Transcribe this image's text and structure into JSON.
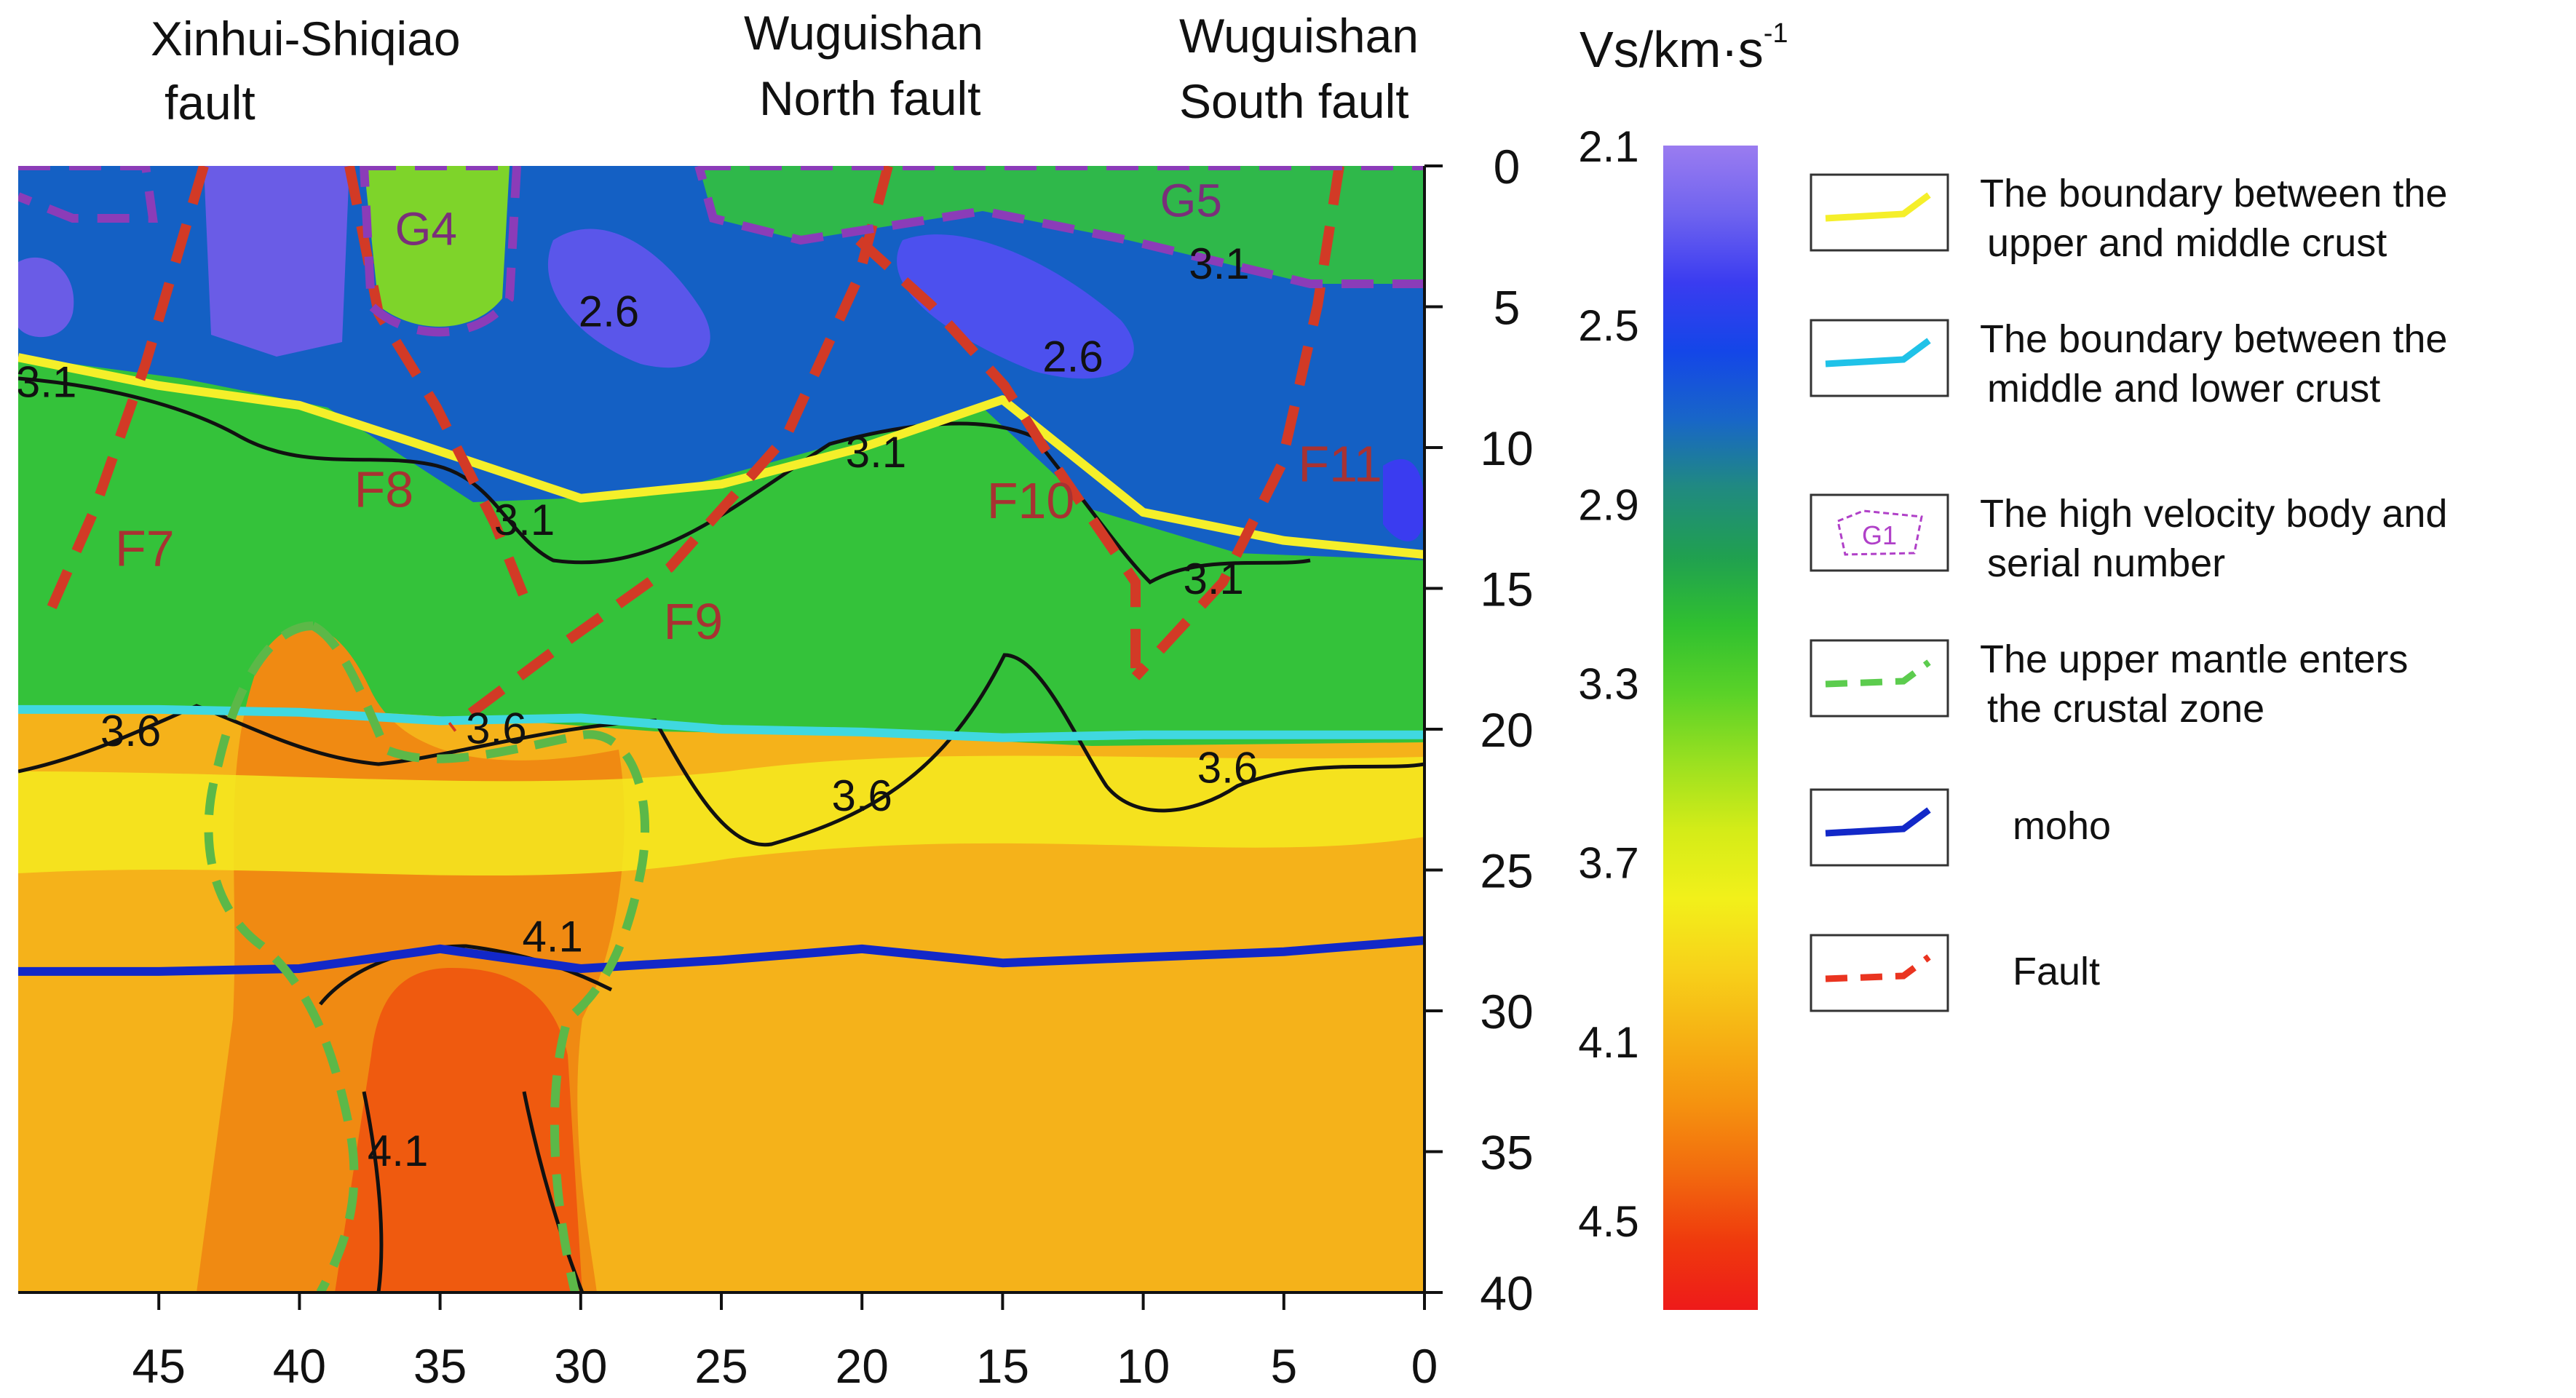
{
  "faults_top": [
    {
      "line1": "Xinhui-Shiqiao",
      "line2": "fault"
    },
    {
      "line1": "Wuguishan",
      "line2": "North fault"
    },
    {
      "line1": "Wuguishan",
      "line2": "South fault"
    }
  ],
  "colorbar": {
    "unit_main": "Vs/km·s",
    "unit_exp": "-1",
    "ticks": [
      "2.1",
      "2.5",
      "2.9",
      "3.3",
      "3.7",
      "4.1",
      "4.5"
    ],
    "stops": [
      "#9a7cf0",
      "#6f63ef",
      "#3a3cf0",
      "#1446e8",
      "#1866c8",
      "#208a80",
      "#20a050",
      "#30c030",
      "#5ad228",
      "#9ae020",
      "#d4ec18",
      "#f2f01a",
      "#f7d21a",
      "#f6b214",
      "#f5920f",
      "#f26a0e",
      "#ef3a0d",
      "#ee1a1a"
    ]
  },
  "legend": [
    {
      "text1": "The boundary between the",
      "text2": "upper and middle crust",
      "kind": "line",
      "color": "#f5ef2a"
    },
    {
      "text1": "The boundary between the",
      "text2": "middle and lower crust",
      "kind": "line",
      "color": "#1fc2e8"
    },
    {
      "text1": "The high velocity body  and",
      "text2": "serial number",
      "kind": "body",
      "color": "#b040c8",
      "sample": "G1"
    },
    {
      "text1": "The upper mantle enters",
      "text2": "the crustal zone",
      "kind": "dash",
      "color": "#5ccc4e"
    },
    {
      "text1": "moho",
      "text2": "",
      "kind": "line",
      "color": "#1228c8"
    },
    {
      "text1": "Fault",
      "text2": "",
      "kind": "dash",
      "color": "#ea3420"
    }
  ],
  "chart_data": {
    "type": "heatmap",
    "x_ticks": [
      45,
      40,
      35,
      30,
      25,
      20,
      15,
      10,
      5,
      0
    ],
    "y_ticks": [
      0,
      5,
      10,
      15,
      20,
      25,
      30,
      35,
      40
    ],
    "xlim": [
      50,
      0
    ],
    "ylim": [
      0,
      40
    ],
    "vs_range": [
      2.1,
      4.7
    ],
    "boundaries": {
      "upper_middle_crust": [
        [
          50,
          6.8
        ],
        [
          45,
          7.8
        ],
        [
          40,
          8.5
        ],
        [
          36,
          9.8
        ],
        [
          30,
          11.8
        ],
        [
          25,
          11.3
        ],
        [
          20,
          10.0
        ],
        [
          15,
          8.3
        ],
        [
          10,
          12.3
        ],
        [
          5,
          13.3
        ],
        [
          0,
          13.8
        ]
      ],
      "middle_lower_crust": [
        [
          50,
          19.3
        ],
        [
          45,
          19.3
        ],
        [
          40,
          19.4
        ],
        [
          35,
          19.7
        ],
        [
          30,
          19.6
        ],
        [
          25,
          20.0
        ],
        [
          20,
          20.1
        ],
        [
          15,
          20.3
        ],
        [
          10,
          20.2
        ],
        [
          5,
          20.2
        ],
        [
          0,
          20.2
        ]
      ],
      "moho": [
        [
          50,
          28.6
        ],
        [
          45,
          28.6
        ],
        [
          40,
          28.5
        ],
        [
          35,
          27.8
        ],
        [
          30,
          28.5
        ],
        [
          25,
          28.2
        ],
        [
          20,
          27.8
        ],
        [
          15,
          28.3
        ],
        [
          10,
          28.1
        ],
        [
          5,
          27.9
        ],
        [
          0,
          27.5
        ]
      ]
    },
    "contour_labels": [
      {
        "text": "3.1",
        "x": 49,
        "y": 8.2
      },
      {
        "text": "3.1",
        "x": 32,
        "y": 13.1
      },
      {
        "text": "3.1",
        "x": 19.5,
        "y": 10.7
      },
      {
        "text": "3.1",
        "x": 7.5,
        "y": 15.2
      },
      {
        "text": "3.1",
        "x": 7.3,
        "y": 4.0
      },
      {
        "text": "2.6",
        "x": 29,
        "y": 5.7
      },
      {
        "text": "2.6",
        "x": 12.5,
        "y": 7.3
      },
      {
        "text": "3.6",
        "x": 46,
        "y": 20.6
      },
      {
        "text": "3.6",
        "x": 33,
        "y": 20.5
      },
      {
        "text": "3.6",
        "x": 20,
        "y": 22.9
      },
      {
        "text": "3.6",
        "x": 7,
        "y": 21.9
      },
      {
        "text": "4.1",
        "x": 31,
        "y": 27.9
      },
      {
        "text": "4.1",
        "x": 36.5,
        "y": 35.5
      }
    ],
    "zone_labels": [
      {
        "text": "F7",
        "x": 45.5,
        "y": 14.2
      },
      {
        "text": "F8",
        "x": 37,
        "y": 12.1
      },
      {
        "text": "F9",
        "x": 26,
        "y": 16.8
      },
      {
        "text": "F10",
        "x": 14,
        "y": 12.5
      },
      {
        "text": "F11",
        "x": 3,
        "y": 11.2
      },
      {
        "text": "G4",
        "x": 35.5,
        "y": 2.8
      },
      {
        "text": "G5",
        "x": 8.3,
        "y": 1.8
      }
    ]
  }
}
